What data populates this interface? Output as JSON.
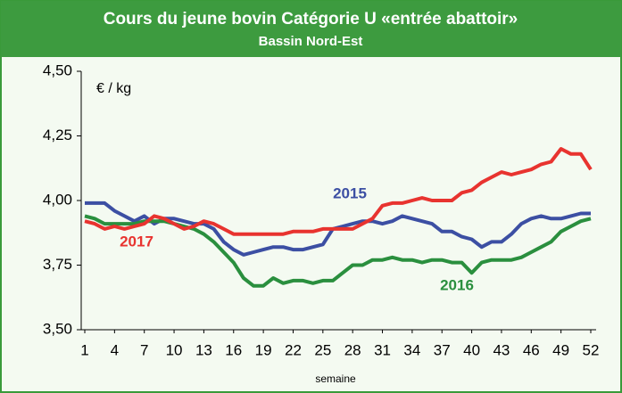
{
  "chart_data": {
    "type": "line",
    "title": "Cours du jeune bovin Catégorie U «entrée abattoir»",
    "subtitle": "Bassin Nord-Est",
    "y_label": "€ / kg",
    "x_label": "semaine",
    "x": [
      1,
      2,
      3,
      4,
      5,
      6,
      7,
      8,
      9,
      10,
      11,
      12,
      13,
      14,
      15,
      16,
      17,
      18,
      19,
      20,
      21,
      22,
      23,
      24,
      25,
      26,
      27,
      28,
      29,
      30,
      31,
      32,
      33,
      34,
      35,
      36,
      37,
      38,
      39,
      40,
      41,
      42,
      43,
      44,
      45,
      46,
      47,
      48,
      49,
      50,
      51,
      52
    ],
    "xlim": [
      1,
      52
    ],
    "xticks": [
      1,
      4,
      7,
      10,
      13,
      16,
      19,
      22,
      25,
      28,
      31,
      34,
      37,
      40,
      43,
      46,
      49,
      52
    ],
    "ylim": [
      3.5,
      4.5
    ],
    "yticks": [
      {
        "value": 3.5,
        "label": "3,50"
      },
      {
        "value": 3.75,
        "label": "3,75"
      },
      {
        "value": 4.0,
        "label": "4,00"
      },
      {
        "value": 4.25,
        "label": "4,25"
      },
      {
        "value": 4.5,
        "label": "4,50"
      }
    ],
    "series": [
      {
        "name": "2015",
        "color": "#3c4fa3",
        "values": [
          3.99,
          3.99,
          3.99,
          3.96,
          3.94,
          3.92,
          3.94,
          3.91,
          3.93,
          3.93,
          3.92,
          3.91,
          3.91,
          3.89,
          3.84,
          3.81,
          3.79,
          3.8,
          3.81,
          3.82,
          3.82,
          3.81,
          3.81,
          3.82,
          3.83,
          3.89,
          3.9,
          3.91,
          3.92,
          3.92,
          3.91,
          3.92,
          3.94,
          3.93,
          3.92,
          3.91,
          3.88,
          3.88,
          3.86,
          3.85,
          3.82,
          3.84,
          3.84,
          3.87,
          3.91,
          3.93,
          3.94,
          3.93,
          3.93,
          3.94,
          3.95,
          3.95
        ]
      },
      {
        "name": "2016",
        "color": "#2a8f3e",
        "values": [
          3.94,
          3.93,
          3.91,
          3.91,
          3.91,
          3.91,
          3.92,
          3.92,
          3.92,
          3.91,
          3.9,
          3.89,
          3.87,
          3.84,
          3.8,
          3.76,
          3.7,
          3.67,
          3.67,
          3.7,
          3.68,
          3.69,
          3.69,
          3.68,
          3.69,
          3.69,
          3.72,
          3.75,
          3.75,
          3.77,
          3.77,
          3.78,
          3.77,
          3.77,
          3.76,
          3.77,
          3.77,
          3.76,
          3.76,
          3.72,
          3.76,
          3.77,
          3.77,
          3.77,
          3.78,
          3.8,
          3.82,
          3.84,
          3.88,
          3.9,
          3.92,
          3.93
        ]
      },
      {
        "name": "2017",
        "color": "#e8332f",
        "values": [
          3.92,
          3.91,
          3.89,
          3.9,
          3.89,
          3.9,
          3.91,
          3.94,
          3.93,
          3.91,
          3.89,
          3.9,
          3.92,
          3.91,
          3.89,
          3.87,
          3.87,
          3.87,
          3.87,
          3.87,
          3.87,
          3.88,
          3.88,
          3.88,
          3.89,
          3.89,
          3.89,
          3.89,
          3.91,
          3.93,
          3.98,
          3.99,
          3.99,
          4.0,
          4.01,
          4.0,
          4.0,
          4.0,
          4.03,
          4.04,
          4.07,
          4.09,
          4.11,
          4.1,
          4.11,
          4.12,
          4.14,
          4.15,
          4.2,
          4.18,
          4.18,
          4.12
        ]
      }
    ]
  }
}
